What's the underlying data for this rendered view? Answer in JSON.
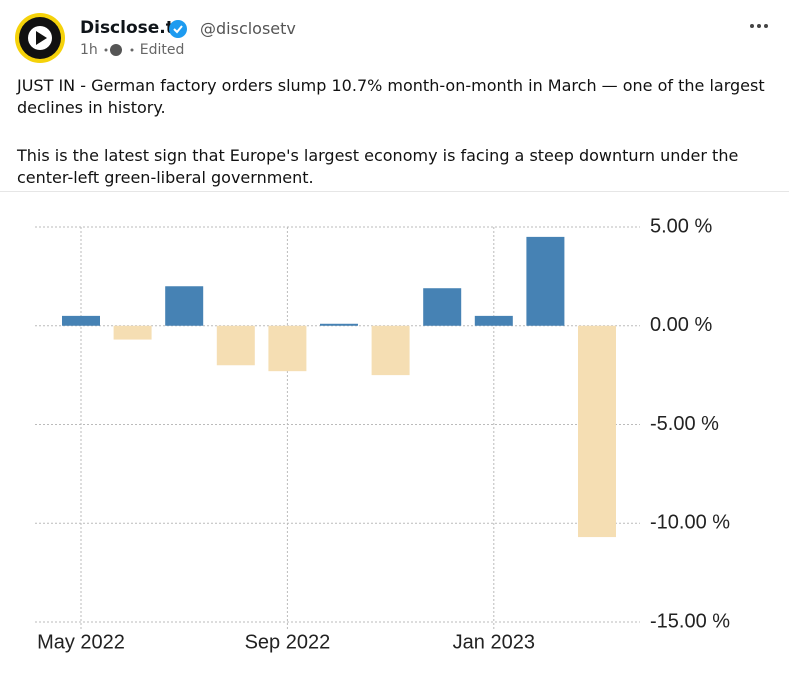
{
  "post": {
    "author_name": "Disclose.tv",
    "handle": "@disclosetv",
    "time": "1h",
    "edited": "Edited",
    "paragraphs": [
      "JUST IN - German factory orders slump 10.7% month-on-month in March — one of the largest declines in history.",
      "This is the latest sign that Europe's largest economy is facing a steep downturn under the center-left green-liberal government."
    ]
  },
  "chart_data": {
    "type": "bar",
    "categories": [
      "May 2022",
      null,
      null,
      null,
      "Sep 2022",
      null,
      null,
      null,
      "Jan 2023",
      null,
      null
    ],
    "values": [
      0.5,
      -0.7,
      2.0,
      -2.0,
      -2.3,
      0.1,
      -2.5,
      1.9,
      0.5,
      4.5,
      -10.7
    ],
    "positive_color": "#4682b4",
    "negative_color": "#f5deb3",
    "ylim": [
      -15,
      5
    ],
    "yticks": [
      {
        "value": 5,
        "label": "5.00 %"
      },
      {
        "value": 0,
        "label": "0.00 %"
      },
      {
        "value": -5,
        "label": "-5.00 %"
      },
      {
        "value": -10,
        "label": "-10.00 %"
      },
      {
        "value": -15,
        "label": "-15.00 %"
      }
    ],
    "grid": true
  }
}
